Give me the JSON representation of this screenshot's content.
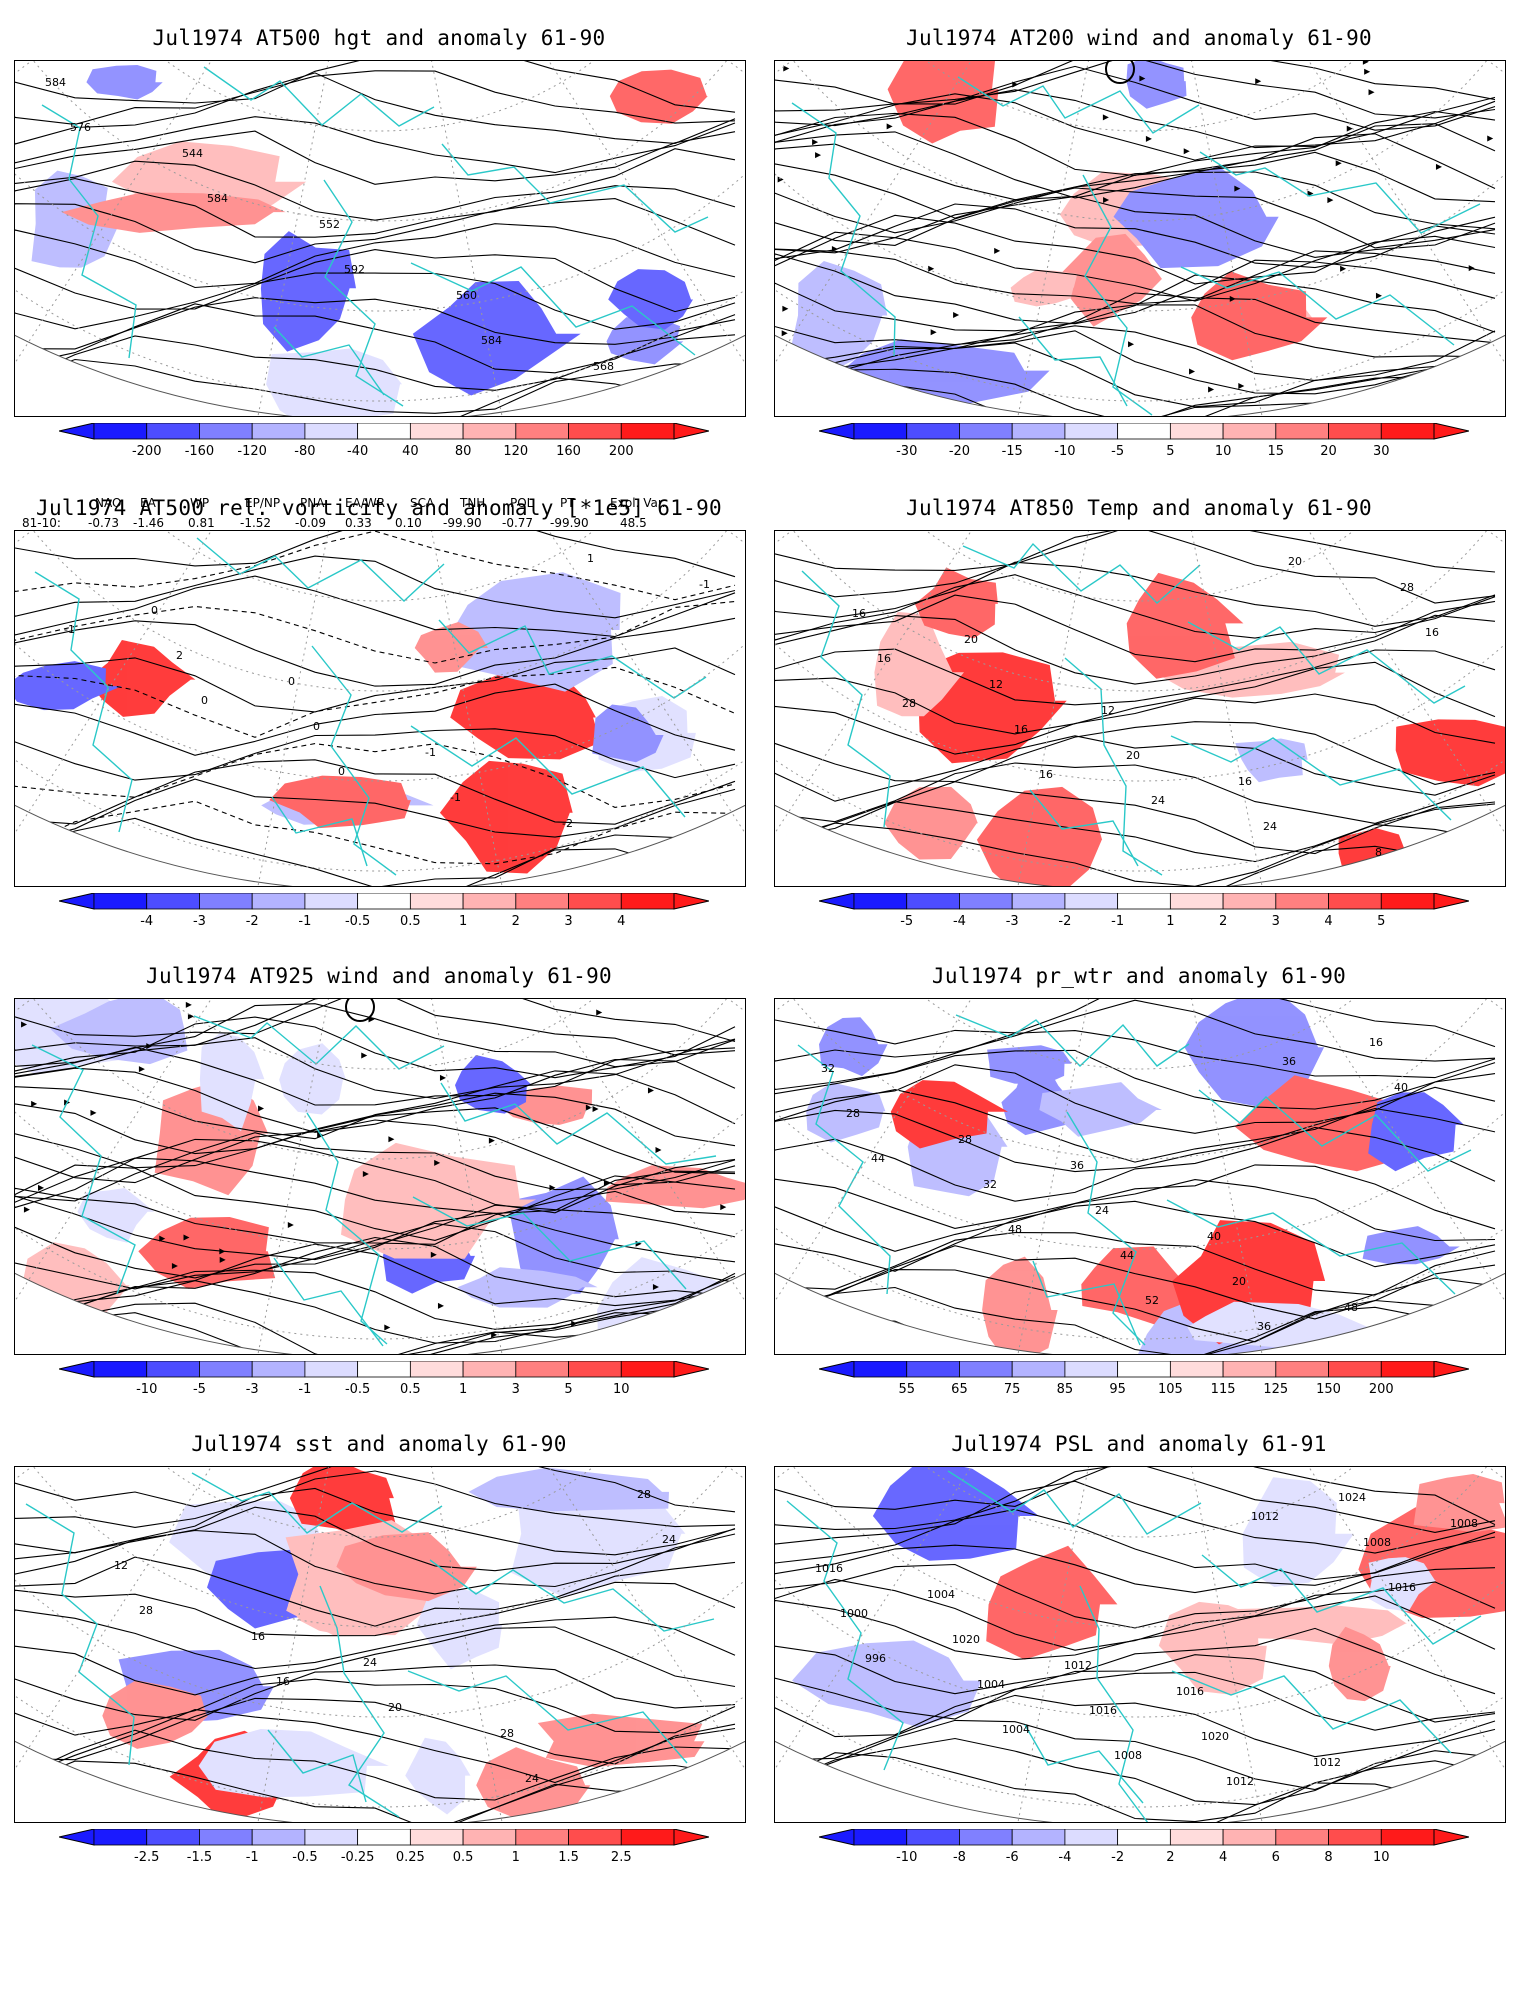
{
  "panels": [
    {
      "id": "p1",
      "title": "Jul1974 AT500 hgt and anomaly 61-90",
      "variant": 1,
      "colorbar": {
        "labels": [
          "-200",
          "-160",
          "-120",
          "-80",
          "-40",
          "40",
          "80",
          "120",
          "160",
          "200"
        ]
      },
      "contour_labels": [
        "584",
        "544",
        "552",
        "560",
        "568",
        "576",
        "584",
        "592",
        "584"
      ]
    },
    {
      "id": "p2",
      "title": "Jul1974 AT200 wind and anomaly 61-90",
      "variant": 2,
      "colorbar": {
        "labels": [
          "-30",
          "-20",
          "-15",
          "-10",
          "-5",
          "5",
          "10",
          "15",
          "20",
          "30"
        ]
      },
      "contour_labels": []
    },
    {
      "id": "p3",
      "title": "Jul1974 AT500 rel. vorticity and anomaly [*1e5] 61-90",
      "variant": 3,
      "colorbar": {
        "labels": [
          "-4",
          "-3",
          "-2",
          "-1",
          "-0.5",
          "0.5",
          "1",
          "2",
          "3",
          "4"
        ]
      },
      "contour_labels": [
        "0",
        "0",
        "-1",
        "-2",
        "-1",
        "2",
        "0",
        "-1",
        "1",
        "-1",
        "0",
        "0"
      ]
    },
    {
      "id": "p4",
      "title": "Jul1974 AT850 Temp and anomaly 61-90",
      "variant": 4,
      "colorbar": {
        "labels": [
          "-5",
          "-4",
          "-3",
          "-2",
          "-1",
          "1",
          "2",
          "3",
          "4",
          "5"
        ]
      },
      "contour_labels": [
        "20",
        "12",
        "16",
        "8",
        "16",
        "12",
        "20",
        "24",
        "28",
        "16",
        "16",
        "24",
        "20",
        "16",
        "28",
        "16"
      ]
    },
    {
      "id": "p5",
      "title": "Jul1974 AT925 wind and anomaly 61-90",
      "variant": 5,
      "colorbar": {
        "labels": [
          "-10",
          "-5",
          "-3",
          "-1",
          "-0.5",
          "0.5",
          "1",
          "3",
          "5",
          "10"
        ]
      },
      "contour_labels": []
    },
    {
      "id": "p6",
      "title": "Jul1974 pr_wtr and anomaly 61-90",
      "variant": 6,
      "colorbar": {
        "labels": [
          "55",
          "65",
          "75",
          "85",
          "95",
          "105",
          "115",
          "125",
          "150",
          "200"
        ]
      },
      "contour_labels": [
        "36",
        "40",
        "48",
        "32",
        "28",
        "24",
        "20",
        "16",
        "28",
        "32",
        "44",
        "36",
        "40",
        "44",
        "48",
        "52",
        "36"
      ]
    },
    {
      "id": "p7",
      "title": "Jul1974 sst and anomaly 61-90",
      "variant": 7,
      "colorbar": {
        "labels": [
          "-2.5",
          "-1.5",
          "-1",
          "-0.5",
          "-0.25",
          "0.25",
          "0.5",
          "1",
          "1.5",
          "2.5"
        ]
      },
      "contour_labels": [
        "24",
        "28",
        "28",
        "12",
        "16",
        "20",
        "24",
        "24",
        "28",
        "16"
      ]
    },
    {
      "id": "p8",
      "title": "Jul1974 PSL and anomaly 61-91",
      "variant": 8,
      "colorbar": {
        "labels": [
          "-10",
          "-8",
          "-6",
          "-4",
          "-2",
          "2",
          "4",
          "6",
          "8",
          "10"
        ]
      },
      "contour_labels": [
        "1016",
        "1012",
        "1008",
        "1004",
        "1012",
        "1020",
        "1024",
        "1016",
        "1020",
        "1016",
        "1012",
        "1008",
        "1000",
        "1004",
        "1008",
        "1012",
        "1016",
        "996",
        "1004"
      ]
    }
  ],
  "teleconnection_index": {
    "headers": [
      "NAO",
      "EA",
      "WP",
      "EP/NP",
      "PNA",
      "EA/WR",
      "SCA",
      "TNH",
      "POL",
      "PT",
      "Expl. Var."
    ],
    "row_label": "81-10:",
    "values": [
      "-0.73",
      "-1.46",
      "0.81",
      "-1.52",
      "-0.09",
      "0.33",
      "0.10",
      "-99.90",
      "-0.77",
      "-99.90",
      "48.5"
    ]
  },
  "colors": {
    "coast": "#2ac8c8",
    "grid": "#9a9a9a",
    "contour": "#000000",
    "blue_scale": [
      "#1a1aff",
      "#4d4dff",
      "#8080ff",
      "#b3b3ff",
      "#dcdcff"
    ],
    "red_scale": [
      "#ffdcdc",
      "#ffb3b3",
      "#ff8080",
      "#ff4d4d",
      "#ff1a1a"
    ]
  }
}
